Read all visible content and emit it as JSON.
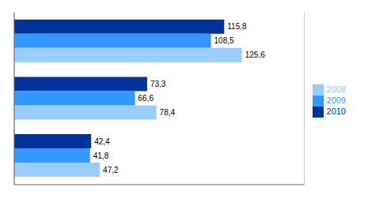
{
  "chart_data": {
    "type": "bar",
    "orientation": "horizontal",
    "categories": [
      null,
      null,
      null
    ],
    "series": [
      {
        "name": "2010",
        "color": "#003399",
        "values": [
          115.8,
          73.3,
          42.4
        ],
        "value_labels": [
          "115,8",
          "73,3",
          "42,4"
        ]
      },
      {
        "name": "2009",
        "color": "#3399FF",
        "values": [
          108.5,
          66.6,
          41.8
        ],
        "value_labels": [
          "108,5",
          "66,6",
          "41,8"
        ]
      },
      {
        "name": "2008",
        "color": "#99CCFF",
        "values": [
          125.6,
          78.4,
          47.2
        ],
        "value_labels": [
          "125,6",
          "78,4",
          "47,2"
        ]
      }
    ],
    "xlim": [
      0,
      160
    ],
    "xticks": [
      0,
      20,
      40,
      60,
      80,
      100,
      120,
      140,
      160
    ],
    "grid": true,
    "legend": "right",
    "data_labels": true,
    "tick_labels": false
  }
}
